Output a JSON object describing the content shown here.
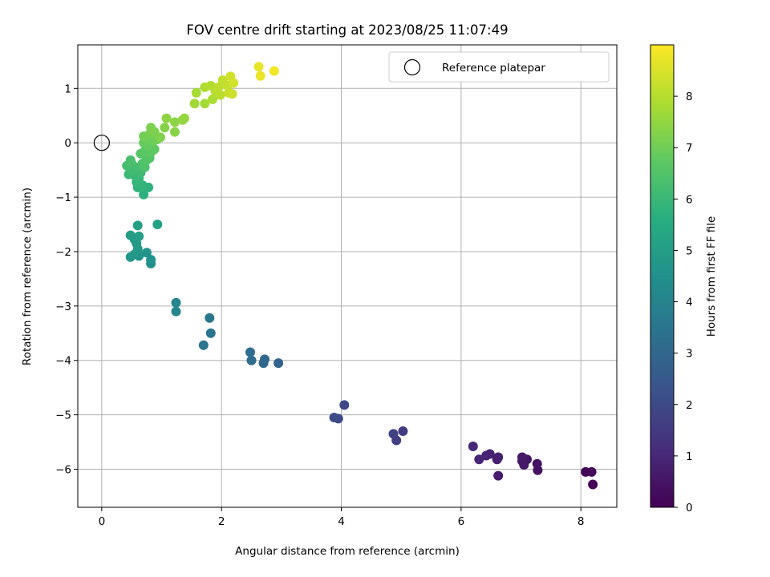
{
  "chart_data": {
    "type": "scatter",
    "title": "FOV centre drift starting at 2023/08/25 11:07:49",
    "xlabel": "Angular distance from reference (arcmin)",
    "ylabel": "Rotation from reference (arcmin)",
    "xlim": [
      -0.4,
      8.6
    ],
    "ylim": [
      -6.7,
      1.8
    ],
    "x_ticks": [
      0,
      2,
      4,
      6,
      8
    ],
    "y_ticks": [
      1,
      0,
      -1,
      -2,
      -3,
      -4,
      -5,
      -6
    ],
    "x_tick_labels": [
      "0",
      "2",
      "4",
      "6",
      "8"
    ],
    "y_tick_labels": [
      "1",
      "0",
      "−1",
      "−2",
      "−3",
      "−4",
      "−5",
      "−6"
    ],
    "grid": true,
    "legend": {
      "position": "top-right",
      "entries": [
        "Reference platepar"
      ]
    },
    "reference_point": {
      "x": 0,
      "y": 0
    },
    "colorbar": {
      "label": "Hours from first FF file",
      "min": 0,
      "max": 9,
      "ticks": [
        0,
        1,
        2,
        3,
        4,
        5,
        6,
        7,
        8
      ],
      "tick_labels": [
        "0",
        "1",
        "2",
        "3",
        "4",
        "5",
        "6",
        "7",
        "8"
      ],
      "colormap": "viridis"
    },
    "points": [
      {
        "x": 8.2,
        "y": -6.28,
        "h": 0.05
      },
      {
        "x": 8.08,
        "y": -6.05,
        "h": 0.1
      },
      {
        "x": 8.18,
        "y": -6.05,
        "h": 0.15
      },
      {
        "x": 7.28,
        "y": -6.02,
        "h": 0.4
      },
      {
        "x": 7.27,
        "y": -5.9,
        "h": 0.45
      },
      {
        "x": 7.1,
        "y": -5.82,
        "h": 0.5
      },
      {
        "x": 7.05,
        "y": -5.92,
        "h": 0.55
      },
      {
        "x": 7.02,
        "y": -5.85,
        "h": 0.6
      },
      {
        "x": 7.02,
        "y": -5.78,
        "h": 0.62
      },
      {
        "x": 6.62,
        "y": -6.12,
        "h": 0.7
      },
      {
        "x": 6.6,
        "y": -5.82,
        "h": 0.75
      },
      {
        "x": 6.62,
        "y": -5.78,
        "h": 0.78
      },
      {
        "x": 6.48,
        "y": -5.72,
        "h": 0.85
      },
      {
        "x": 6.42,
        "y": -5.75,
        "h": 0.9
      },
      {
        "x": 6.3,
        "y": -5.82,
        "h": 0.95
      },
      {
        "x": 6.2,
        "y": -5.58,
        "h": 1.0
      },
      {
        "x": 5.03,
        "y": -5.3,
        "h": 1.6
      },
      {
        "x": 4.92,
        "y": -5.47,
        "h": 1.65
      },
      {
        "x": 4.87,
        "y": -5.35,
        "h": 1.7
      },
      {
        "x": 4.05,
        "y": -4.82,
        "h": 1.95
      },
      {
        "x": 3.95,
        "y": -5.07,
        "h": 2.0
      },
      {
        "x": 3.88,
        "y": -5.05,
        "h": 2.05
      },
      {
        "x": 2.95,
        "y": -4.05,
        "h": 2.9
      },
      {
        "x": 2.72,
        "y": -3.98,
        "h": 3.0
      },
      {
        "x": 2.7,
        "y": -4.05,
        "h": 3.05
      },
      {
        "x": 2.5,
        "y": -4.0,
        "h": 3.15
      },
      {
        "x": 2.48,
        "y": -3.85,
        "h": 3.2
      },
      {
        "x": 1.7,
        "y": -3.72,
        "h": 3.45
      },
      {
        "x": 1.82,
        "y": -3.5,
        "h": 3.5
      },
      {
        "x": 1.8,
        "y": -3.22,
        "h": 3.55
      },
      {
        "x": 1.24,
        "y": -3.1,
        "h": 4.05
      },
      {
        "x": 1.24,
        "y": -2.94,
        "h": 4.1
      },
      {
        "x": 0.82,
        "y": -2.22,
        "h": 4.5
      },
      {
        "x": 0.82,
        "y": -2.15,
        "h": 4.55
      },
      {
        "x": 0.75,
        "y": -2.02,
        "h": 4.6
      },
      {
        "x": 0.62,
        "y": -2.08,
        "h": 4.65
      },
      {
        "x": 0.48,
        "y": -2.1,
        "h": 4.7
      },
      {
        "x": 0.55,
        "y": -2.05,
        "h": 4.75
      },
      {
        "x": 0.6,
        "y": -1.95,
        "h": 4.8
      },
      {
        "x": 0.58,
        "y": -1.85,
        "h": 4.85
      },
      {
        "x": 0.55,
        "y": -1.78,
        "h": 4.9
      },
      {
        "x": 0.48,
        "y": -1.7,
        "h": 4.95
      },
      {
        "x": 0.62,
        "y": -1.72,
        "h": 5.0
      },
      {
        "x": 0.6,
        "y": -1.52,
        "h": 5.05
      },
      {
        "x": 0.93,
        "y": -1.5,
        "h": 5.15
      },
      {
        "x": 0.7,
        "y": -0.95,
        "h": 5.7
      },
      {
        "x": 0.78,
        "y": -0.82,
        "h": 5.75
      },
      {
        "x": 0.6,
        "y": -0.82,
        "h": 5.8
      },
      {
        "x": 0.68,
        "y": -0.78,
        "h": 5.85
      },
      {
        "x": 0.58,
        "y": -0.72,
        "h": 5.9
      },
      {
        "x": 0.62,
        "y": -0.65,
        "h": 5.95
      },
      {
        "x": 0.55,
        "y": -0.6,
        "h": 6.0
      },
      {
        "x": 0.45,
        "y": -0.58,
        "h": 6.05
      },
      {
        "x": 0.65,
        "y": -0.55,
        "h": 6.1
      },
      {
        "x": 0.52,
        "y": -0.5,
        "h": 6.15
      },
      {
        "x": 0.58,
        "y": -0.45,
        "h": 6.2
      },
      {
        "x": 0.42,
        "y": -0.42,
        "h": 6.25
      },
      {
        "x": 0.5,
        "y": -0.38,
        "h": 6.3
      },
      {
        "x": 0.48,
        "y": -0.32,
        "h": 6.35
      },
      {
        "x": 0.72,
        "y": -0.45,
        "h": 6.4
      },
      {
        "x": 0.68,
        "y": -0.38,
        "h": 6.45
      },
      {
        "x": 0.75,
        "y": -0.32,
        "h": 6.5
      },
      {
        "x": 0.8,
        "y": -0.28,
        "h": 6.55
      },
      {
        "x": 0.65,
        "y": -0.2,
        "h": 6.6
      },
      {
        "x": 0.72,
        "y": -0.15,
        "h": 6.65
      },
      {
        "x": 0.82,
        "y": -0.18,
        "h": 6.7
      },
      {
        "x": 0.88,
        "y": -0.12,
        "h": 6.75
      },
      {
        "x": 0.78,
        "y": -0.05,
        "h": 6.8
      },
      {
        "x": 0.7,
        "y": 0.0,
        "h": 6.85
      },
      {
        "x": 0.85,
        "y": 0.02,
        "h": 6.9
      },
      {
        "x": 0.75,
        "y": 0.08,
        "h": 6.95
      },
      {
        "x": 0.92,
        "y": 0.06,
        "h": 7.0
      },
      {
        "x": 0.7,
        "y": 0.12,
        "h": 7.05
      },
      {
        "x": 0.8,
        "y": 0.16,
        "h": 7.1
      },
      {
        "x": 0.88,
        "y": 0.2,
        "h": 7.15
      },
      {
        "x": 0.82,
        "y": 0.28,
        "h": 7.2
      },
      {
        "x": 0.98,
        "y": 0.1,
        "h": 7.25
      },
      {
        "x": 1.05,
        "y": 0.28,
        "h": 7.3
      },
      {
        "x": 1.22,
        "y": 0.2,
        "h": 7.35
      },
      {
        "x": 1.22,
        "y": 0.38,
        "h": 7.4
      },
      {
        "x": 1.08,
        "y": 0.45,
        "h": 7.45
      },
      {
        "x": 1.35,
        "y": 0.42,
        "h": 7.5
      },
      {
        "x": 1.38,
        "y": 0.45,
        "h": 7.55
      },
      {
        "x": 1.55,
        "y": 0.72,
        "h": 7.7
      },
      {
        "x": 1.72,
        "y": 0.72,
        "h": 7.75
      },
      {
        "x": 1.58,
        "y": 0.92,
        "h": 7.8
      },
      {
        "x": 1.85,
        "y": 0.8,
        "h": 7.85
      },
      {
        "x": 1.72,
        "y": 1.02,
        "h": 7.9
      },
      {
        "x": 1.82,
        "y": 1.05,
        "h": 7.95
      },
      {
        "x": 1.9,
        "y": 0.95,
        "h": 8.0
      },
      {
        "x": 1.98,
        "y": 0.88,
        "h": 8.05
      },
      {
        "x": 1.95,
        "y": 1.02,
        "h": 8.1
      },
      {
        "x": 2.02,
        "y": 1.15,
        "h": 8.15
      },
      {
        "x": 2.1,
        "y": 1.05,
        "h": 8.2
      },
      {
        "x": 2.12,
        "y": 0.92,
        "h": 8.25
      },
      {
        "x": 2.18,
        "y": 0.9,
        "h": 8.3
      },
      {
        "x": 2.15,
        "y": 1.22,
        "h": 8.35
      },
      {
        "x": 2.2,
        "y": 1.1,
        "h": 8.4
      },
      {
        "x": 2.62,
        "y": 1.4,
        "h": 8.7
      },
      {
        "x": 2.65,
        "y": 1.23,
        "h": 8.75
      },
      {
        "x": 2.88,
        "y": 1.32,
        "h": 8.85
      }
    ]
  }
}
